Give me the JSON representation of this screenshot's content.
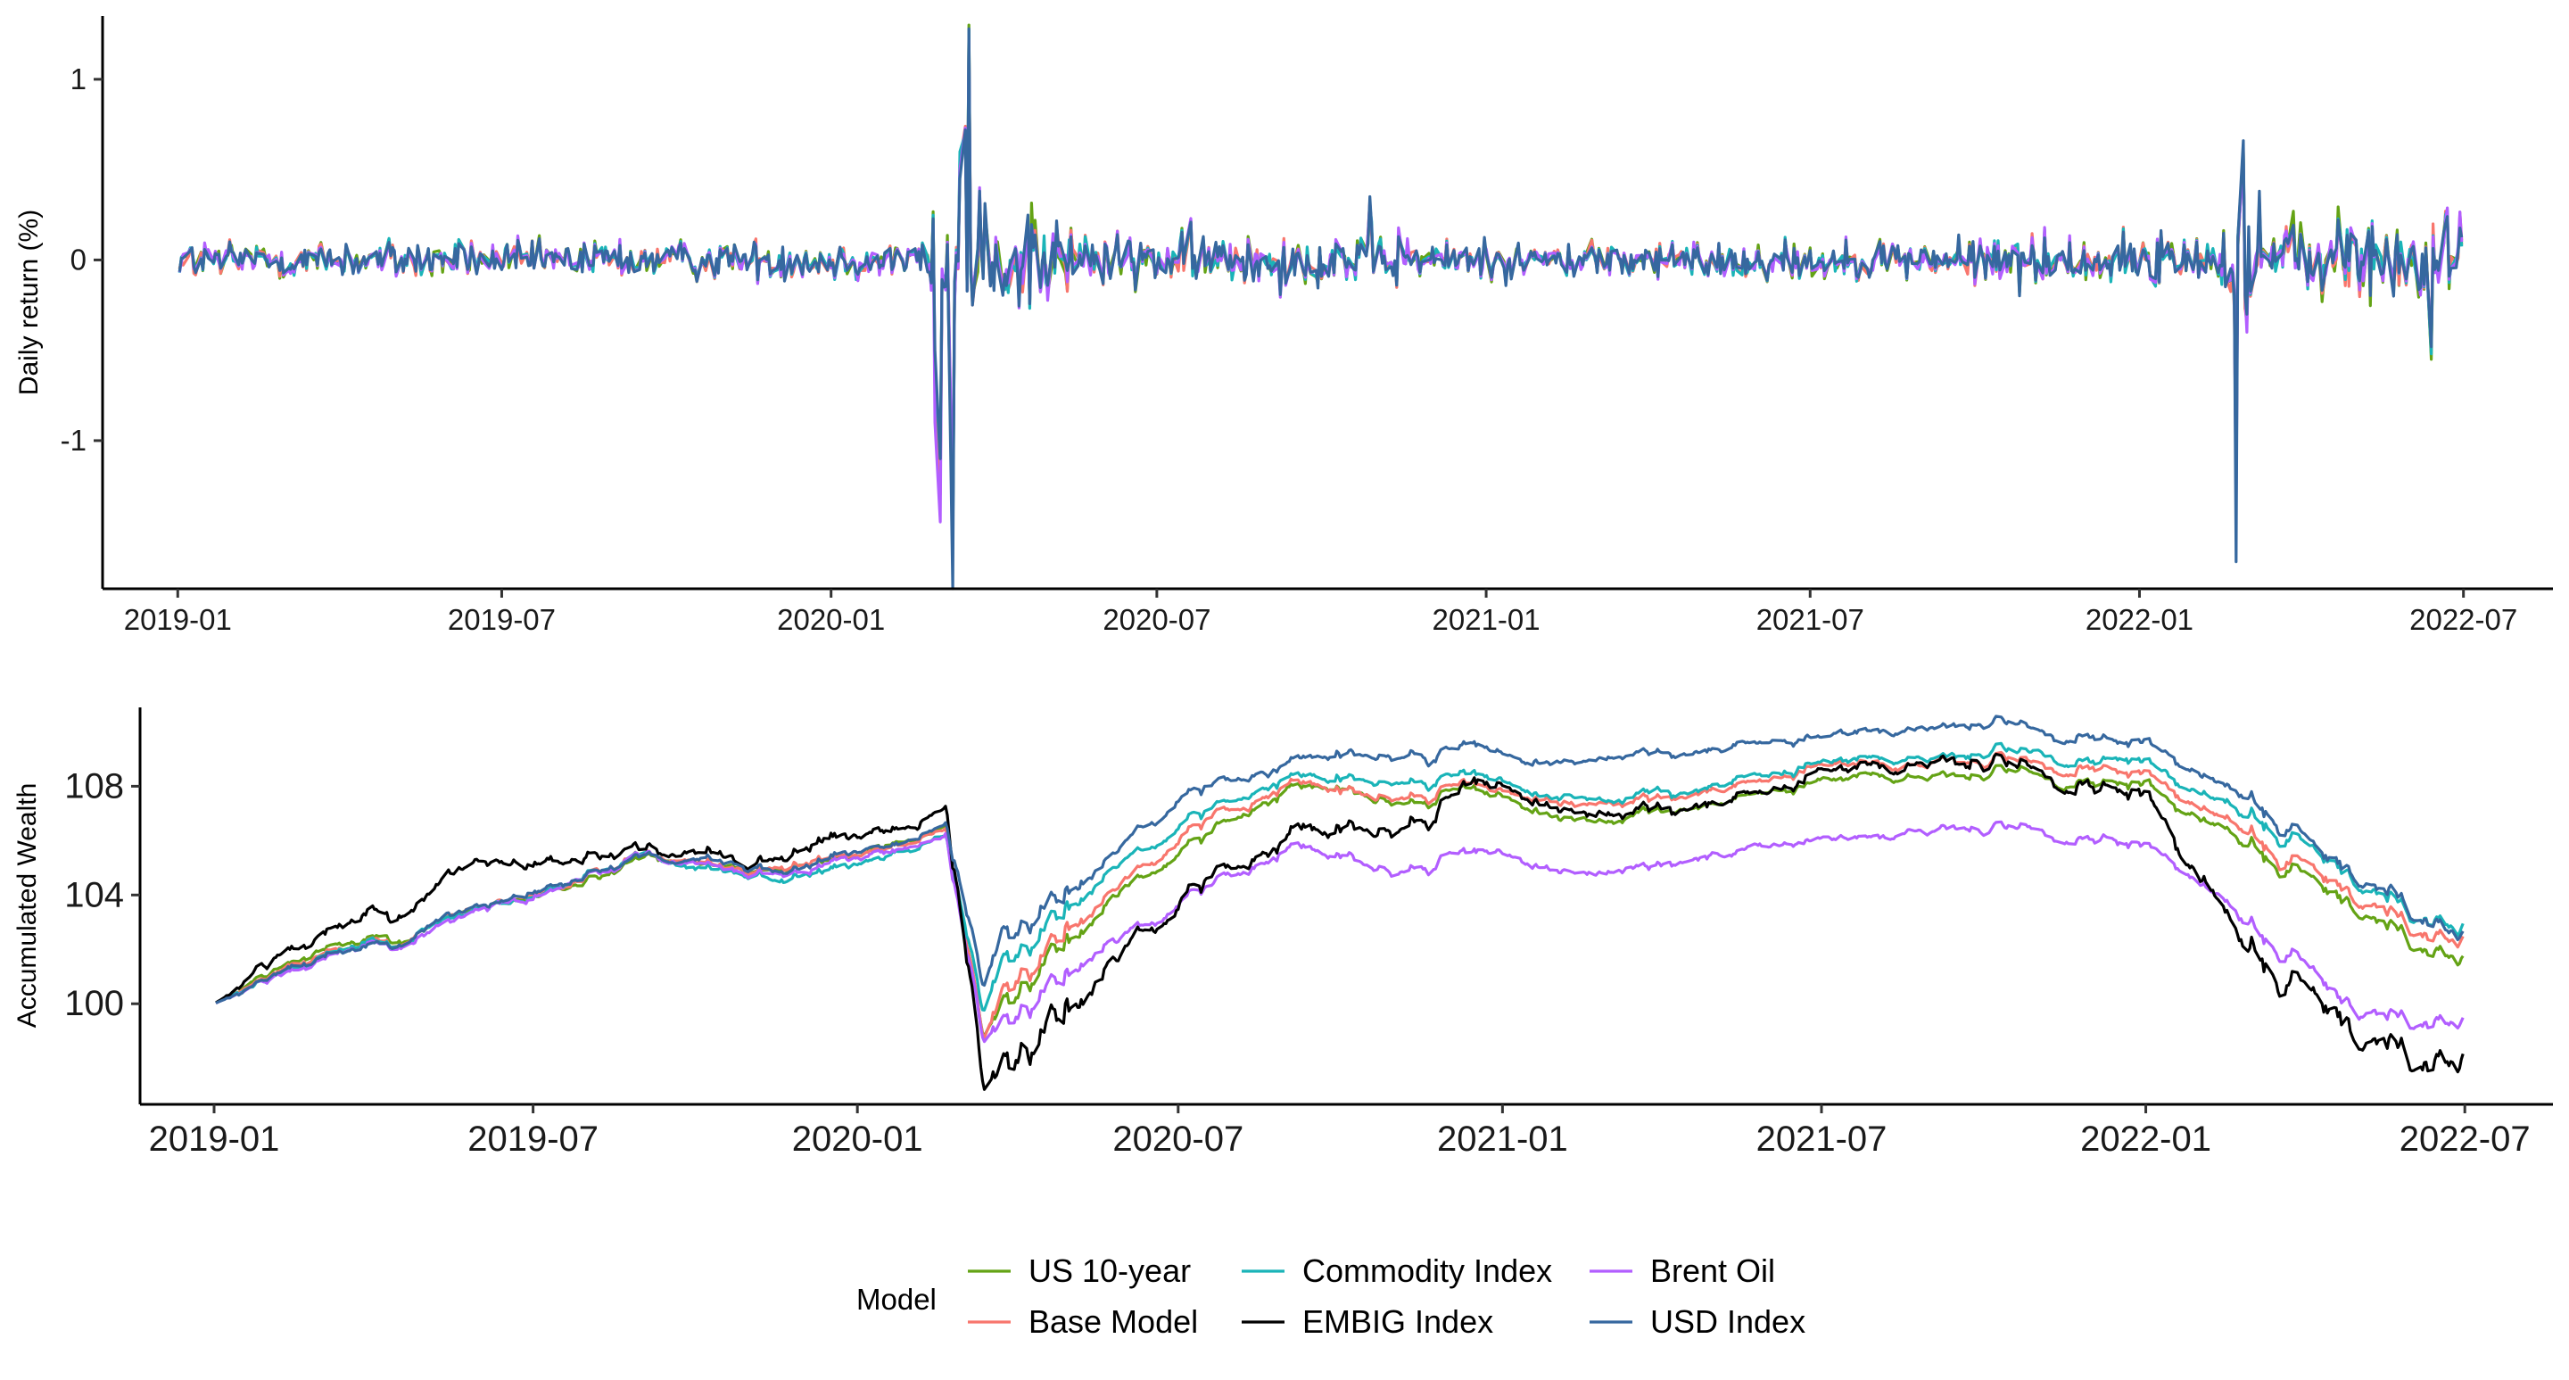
{
  "colors": {
    "axis": "#000000",
    "tick_text": "#1a1a1a"
  },
  "legend": {
    "title": "Model",
    "items": [
      {
        "name": "US 10-year",
        "color": "#64a315"
      },
      {
        "name": "Commodity Index",
        "color": "#1ab4b8"
      },
      {
        "name": "Brent Oil",
        "color": "#b25eff"
      },
      {
        "name": "Base Model",
        "color": "#f8766d"
      },
      {
        "name": "EMBIG Index",
        "color": "#000000"
      },
      {
        "name": "USD Index",
        "color": "#36689f"
      }
    ]
  },
  "chart_data": [
    {
      "type": "line",
      "title": "",
      "xlabel": "",
      "ylabel": "Daily return (%)",
      "x_range": [
        "2018-11-20",
        "2022-08-20"
      ],
      "ylim": [
        -1.82,
        1.35
      ],
      "x_ticks": [
        "2019-01",
        "2019-07",
        "2020-01",
        "2020-07",
        "2021-01",
        "2021-07",
        "2022-01",
        "2022-07"
      ],
      "y_ticks": [
        -1,
        0,
        1
      ],
      "grid": false,
      "series_order": [
        "US 10-year",
        "Base Model",
        "Commodity Index",
        "Brent Oil",
        "USD Index"
      ],
      "noise_level": 0.08,
      "shocks": [
        {
          "x": "2020-02-28",
          "values": {
            "US 10-year": -0.7,
            "Base Model": -0.55,
            "Commodity Index": -0.6,
            "Brent Oil": -0.9,
            "USD Index": -0.5
          }
        },
        {
          "x": "2020-03-02",
          "values": {
            "US 10-year": -1.2,
            "Base Model": -1.3,
            "Commodity Index": -1.1,
            "Brent Oil": -1.45,
            "USD Index": -1.1
          }
        },
        {
          "x": "2020-03-09",
          "values": {
            "US 10-year": -1.5,
            "Base Model": -1.55,
            "Commodity Index": -1.6,
            "Brent Oil": -1.35,
            "USD Index": -1.82
          }
        },
        {
          "x": "2020-03-13",
          "values": {
            "US 10-year": 0.5,
            "Base Model": 0.55,
            "Commodity Index": 0.6,
            "Brent Oil": 0.5,
            "USD Index": 0.45
          }
        },
        {
          "x": "2020-03-16",
          "values": {
            "US 10-year": 0.72,
            "Base Model": 0.74,
            "Commodity Index": 0.7,
            "Brent Oil": 0.73,
            "USD Index": 0.72
          }
        },
        {
          "x": "2020-03-18",
          "values": {
            "US 10-year": 1.3,
            "Base Model": 1.25,
            "Commodity Index": 1.27,
            "Brent Oil": 1.22,
            "USD Index": 1.28
          }
        },
        {
          "x": "2020-03-20",
          "values": {
            "US 10-year": -0.2,
            "Base Model": -0.25,
            "Commodity Index": -0.22,
            "Brent Oil": -0.18,
            "USD Index": -0.25
          }
        },
        {
          "x": "2020-03-24",
          "values": {
            "US 10-year": 0.3,
            "Base Model": 0.35,
            "Commodity Index": 0.32,
            "Brent Oil": 0.4,
            "USD Index": 0.38
          }
        },
        {
          "x": "2020-10-28",
          "values": {
            "US 10-year": 0.3,
            "Base Model": 0.33,
            "Commodity Index": 0.3,
            "Brent Oil": 0.32,
            "USD Index": 0.35
          }
        },
        {
          "x": "2022-02-24",
          "values": {
            "US 10-year": -0.85,
            "Base Model": -1.25,
            "Commodity Index": -1.1,
            "Brent Oil": -1.4,
            "USD Index": -1.67
          }
        },
        {
          "x": "2022-02-28",
          "values": {
            "US 10-year": 0.6,
            "Base Model": 0.62,
            "Commodity Index": 0.6,
            "Brent Oil": 0.55,
            "USD Index": 0.66
          }
        },
        {
          "x": "2022-03-02",
          "values": {
            "US 10-year": -0.3,
            "Base Model": -0.35,
            "Commodity Index": -0.28,
            "Brent Oil": -0.4,
            "USD Index": -0.3
          }
        },
        {
          "x": "2022-03-09",
          "values": {
            "US 10-year": 0.3,
            "Base Model": 0.35,
            "Commodity Index": 0.32,
            "Brent Oil": 0.3,
            "USD Index": 0.38
          }
        },
        {
          "x": "2022-06-13",
          "values": {
            "US 10-year": -0.55,
            "Base Model": -0.5,
            "Commodity Index": -0.52,
            "Brent Oil": -0.45,
            "USD Index": -0.48
          }
        },
        {
          "x": "2022-06-21",
          "values": {
            "US 10-year": 0.25,
            "Base Model": 0.27,
            "Commodity Index": 0.25,
            "Brent Oil": 0.22,
            "USD Index": 0.2
          }
        }
      ]
    },
    {
      "type": "line",
      "title": "",
      "xlabel": "",
      "ylabel": "Accumulated Wealth",
      "x_range": [
        "2018-11-20",
        "2022-08-20"
      ],
      "ylim": [
        96.3,
        110.9
      ],
      "x_ticks": [
        "2019-01",
        "2019-07",
        "2020-01",
        "2020-07",
        "2021-01",
        "2021-07",
        "2022-01",
        "2022-07"
      ],
      "y_ticks": [
        100,
        104,
        108
      ],
      "grid": false,
      "series_order": [
        "US 10-year",
        "Base Model",
        "Commodity Index",
        "Brent Oil",
        "EMBIG Index",
        "USD Index"
      ],
      "series": [
        {
          "name": "US 10-year",
          "color": "#64a315",
          "points": [
            [
              "2019-01-01",
              100
            ],
            [
              "2019-03-01",
              101.8
            ],
            [
              "2019-06-01",
              103.2
            ],
            [
              "2019-09-01",
              105.3
            ],
            [
              "2019-12-01",
              105.0
            ],
            [
              "2020-02-20",
              106.6
            ],
            [
              "2020-03-12",
              98.8
            ],
            [
              "2020-03-23",
              100.3
            ],
            [
              "2020-05-01",
              102.7
            ],
            [
              "2020-07-01",
              105.4
            ],
            [
              "2020-09-01",
              108.1
            ],
            [
              "2020-11-01",
              107.6
            ],
            [
              "2021-01-01",
              107.8
            ],
            [
              "2021-03-01",
              106.6
            ],
            [
              "2021-05-01",
              107.3
            ],
            [
              "2021-07-01",
              108.2
            ],
            [
              "2021-09-15",
              108.4
            ],
            [
              "2021-12-01",
              108.0
            ],
            [
              "2022-01-01",
              107.8
            ],
            [
              "2022-03-01",
              106.0
            ],
            [
              "2022-05-01",
              103.8
            ],
            [
              "2022-06-30",
              101.5
            ]
          ]
        },
        {
          "name": "Base Model",
          "color": "#f8766d",
          "points": [
            [
              "2019-01-01",
              100
            ],
            [
              "2019-03-01",
              101.6
            ],
            [
              "2019-06-01",
              103.3
            ],
            [
              "2019-09-01",
              105.5
            ],
            [
              "2019-12-01",
              105.0
            ],
            [
              "2020-02-20",
              106.6
            ],
            [
              "2020-03-12",
              98.9
            ],
            [
              "2020-03-23",
              100.7
            ],
            [
              "2020-05-01",
              103.1
            ],
            [
              "2020-07-01",
              105.9
            ],
            [
              "2020-09-01",
              108.2
            ],
            [
              "2020-11-01",
              107.8
            ],
            [
              "2021-01-01",
              108.1
            ],
            [
              "2021-03-01",
              107.0
            ],
            [
              "2021-05-01",
              107.8
            ],
            [
              "2021-07-01",
              108.6
            ],
            [
              "2021-09-15",
              108.9
            ],
            [
              "2021-12-01",
              108.5
            ],
            [
              "2022-01-01",
              108.3
            ],
            [
              "2022-03-01",
              106.5
            ],
            [
              "2022-05-01",
              104.2
            ],
            [
              "2022-06-30",
              102.2
            ]
          ]
        },
        {
          "name": "Commodity Index",
          "color": "#1ab4b8",
          "points": [
            [
              "2019-01-01",
              100
            ],
            [
              "2019-03-01",
              101.6
            ],
            [
              "2019-06-01",
              103.2
            ],
            [
              "2019-09-01",
              105.4
            ],
            [
              "2019-12-01",
              104.6
            ],
            [
              "2020-02-20",
              106.3
            ],
            [
              "2020-03-12",
              99.6
            ],
            [
              "2020-03-23",
              101.8
            ],
            [
              "2020-05-01",
              103.9
            ],
            [
              "2020-07-01",
              106.5
            ],
            [
              "2020-09-01",
              108.4
            ],
            [
              "2020-11-01",
              108.3
            ],
            [
              "2021-01-01",
              108.4
            ],
            [
              "2021-03-01",
              107.2
            ],
            [
              "2021-05-01",
              108.0
            ],
            [
              "2021-07-01",
              108.8
            ],
            [
              "2021-09-15",
              109.1
            ],
            [
              "2021-12-01",
              108.9
            ],
            [
              "2022-01-01",
              108.7
            ],
            [
              "2022-03-01",
              107.2
            ],
            [
              "2022-05-01",
              104.8
            ],
            [
              "2022-06-30",
              102.6
            ]
          ]
        },
        {
          "name": "Brent Oil",
          "color": "#b25eff",
          "points": [
            [
              "2019-01-01",
              100
            ],
            [
              "2019-03-01",
              101.5
            ],
            [
              "2019-06-01",
              103.1
            ],
            [
              "2019-09-01",
              105.4
            ],
            [
              "2019-12-01",
              104.8
            ],
            [
              "2020-02-20",
              106.4
            ],
            [
              "2020-03-12",
              98.6
            ],
            [
              "2020-03-23",
              99.6
            ],
            [
              "2020-05-01",
              101.5
            ],
            [
              "2020-07-01",
              103.5
            ],
            [
              "2020-09-01",
              105.9
            ],
            [
              "2020-11-01",
              105.1
            ],
            [
              "2021-01-01",
              105.8
            ],
            [
              "2021-03-01",
              104.6
            ],
            [
              "2021-05-01",
              105.4
            ],
            [
              "2021-07-01",
              106.0
            ],
            [
              "2021-09-15",
              106.5
            ],
            [
              "2021-12-01",
              106.0
            ],
            [
              "2022-01-01",
              105.7
            ],
            [
              "2022-03-01",
              103.2
            ],
            [
              "2022-05-01",
              100.0
            ],
            [
              "2022-06-30",
              99.2
            ]
          ]
        },
        {
          "name": "EMBIG Index",
          "color": "#000000",
          "points": [
            [
              "2019-01-01",
              100
            ],
            [
              "2019-03-01",
              102.2
            ],
            [
              "2019-06-01",
              104.7
            ],
            [
              "2019-09-01",
              105.7
            ],
            [
              "2019-12-01",
              105.6
            ],
            [
              "2020-02-20",
              107.4
            ],
            [
              "2020-03-12",
              96.9
            ],
            [
              "2020-03-23",
              98.2
            ],
            [
              "2020-05-01",
              100.3
            ],
            [
              "2020-07-01",
              103.5
            ],
            [
              "2020-09-01",
              106.5
            ],
            [
              "2020-11-01",
              106.6
            ],
            [
              "2021-01-01",
              108.4
            ],
            [
              "2021-03-01",
              106.6
            ],
            [
              "2021-05-01",
              107.3
            ],
            [
              "2021-07-01",
              108.4
            ],
            [
              "2021-09-15",
              108.9
            ],
            [
              "2021-12-01",
              107.8
            ],
            [
              "2022-01-01",
              107.3
            ],
            [
              "2022-03-01",
              102.4
            ],
            [
              "2022-05-01",
              99.3
            ],
            [
              "2022-06-30",
              97.6
            ]
          ]
        },
        {
          "name": "USD Index",
          "color": "#36689f",
          "points": [
            [
              "2019-01-01",
              100
            ],
            [
              "2019-03-01",
              101.5
            ],
            [
              "2019-06-01",
              103.3
            ],
            [
              "2019-09-01",
              105.5
            ],
            [
              "2019-12-01",
              105.0
            ],
            [
              "2020-02-20",
              106.7
            ],
            [
              "2020-03-12",
              100.5
            ],
            [
              "2020-03-23",
              102.8
            ],
            [
              "2020-05-01",
              104.3
            ],
            [
              "2020-07-01",
              107.4
            ],
            [
              "2020-09-01",
              109.0
            ],
            [
              "2020-11-01",
              109.3
            ],
            [
              "2021-01-01",
              109.5
            ],
            [
              "2021-03-01",
              108.7
            ],
            [
              "2021-05-01",
              109.3
            ],
            [
              "2021-07-01",
              109.8
            ],
            [
              "2021-09-15",
              110.2
            ],
            [
              "2021-12-01",
              109.7
            ],
            [
              "2022-01-01",
              109.4
            ],
            [
              "2022-03-01",
              107.8
            ],
            [
              "2022-05-01",
              105.0
            ],
            [
              "2022-06-30",
              102.5
            ]
          ]
        }
      ]
    }
  ]
}
